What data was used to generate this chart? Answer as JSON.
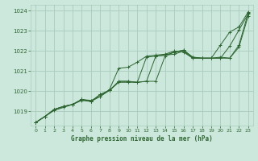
{
  "title": "Graphe pression niveau de la mer (hPa)",
  "bg_color": "#cce8dc",
  "grid_color": "#aaccbc",
  "line_color": "#2d6630",
  "xlim": [
    -0.5,
    23.5
  ],
  "ylim": [
    1018.3,
    1024.3
  ],
  "xticks": [
    0,
    1,
    2,
    3,
    4,
    5,
    6,
    7,
    8,
    9,
    10,
    11,
    12,
    13,
    14,
    15,
    16,
    17,
    18,
    19,
    20,
    21,
    22,
    23
  ],
  "yticks": [
    1019,
    1020,
    1021,
    1022,
    1023,
    1024
  ],
  "series": [
    [
      1018.45,
      1018.75,
      1019.1,
      1019.25,
      1019.35,
      1019.6,
      1019.5,
      1019.85,
      1020.05,
      1020.5,
      1020.5,
      1020.45,
      1020.5,
      1020.5,
      1021.75,
      1021.95,
      1022.05,
      1021.7,
      1021.65,
      1021.65,
      1021.65,
      1021.65,
      1022.2,
      1023.75
    ],
    [
      1018.45,
      1018.75,
      1019.1,
      1019.25,
      1019.35,
      1019.6,
      1019.5,
      1019.85,
      1020.05,
      1020.5,
      1020.5,
      1020.45,
      1020.5,
      1021.75,
      1021.8,
      1021.95,
      1022.05,
      1021.7,
      1021.65,
      1021.65,
      1021.65,
      1022.25,
      1023.05,
      1023.85
    ],
    [
      1018.45,
      1018.75,
      1019.1,
      1019.25,
      1019.35,
      1019.6,
      1019.55,
      1019.75,
      1020.1,
      1021.15,
      1021.2,
      1021.45,
      1021.75,
      1021.8,
      1021.85,
      1022.0,
      1021.95,
      1021.65,
      1021.65,
      1021.65,
      1022.3,
      1022.95,
      1023.2,
      1023.95
    ],
    [
      1018.45,
      1018.75,
      1019.05,
      1019.2,
      1019.35,
      1019.55,
      1019.5,
      1019.75,
      1020.05,
      1020.45,
      1020.45,
      1020.45,
      1021.7,
      1021.75,
      1021.8,
      1021.85,
      1022.0,
      1021.65,
      1021.65,
      1021.65,
      1021.7,
      1021.65,
      1022.3,
      1023.9
    ]
  ]
}
